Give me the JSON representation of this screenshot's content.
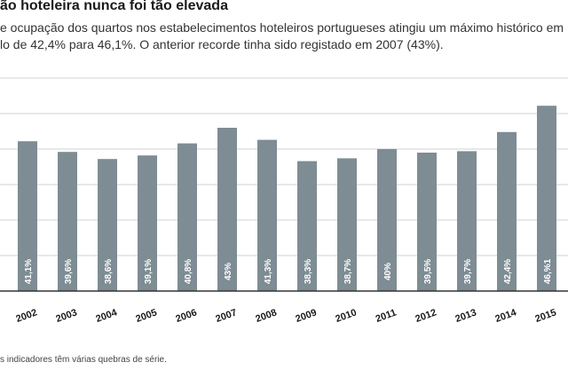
{
  "header": {
    "title": "ão hoteleira nunca foi tão elevada",
    "subtitle_line1": "e ocupação dos quartos nos estabelecimentos hoteleiros portugueses atingiu um máximo histórico em",
    "subtitle_line2": "lo de 42,4% para 46,1%. O anterior recorde tinha sido registado em 2007 (43%)."
  },
  "footnote": "s indicadores têm várias quebras de série.",
  "colors": {
    "bar": "#7e8c94",
    "grid": "#d0d0d0",
    "axis": "#333333",
    "bar_label": "#ffffff"
  },
  "chart_data": {
    "type": "bar",
    "title": "ão hoteleira nunca foi tão elevada",
    "xlabel": "",
    "ylabel": "",
    "grid": true,
    "ylim": [
      20,
      50
    ],
    "categories": [
      "2002",
      "2003",
      "2004",
      "2005",
      "2006",
      "2007",
      "2008",
      "2009",
      "2010",
      "2011",
      "2012",
      "2013",
      "2014",
      "2015"
    ],
    "values": [
      41.1,
      39.6,
      38.6,
      39.1,
      40.8,
      43,
      41.3,
      38.3,
      38.7,
      40,
      39.5,
      39.7,
      42.4,
      46.1
    ],
    "data_labels": [
      "41,1%",
      "39,6%",
      "38,6%",
      "39,1%",
      "40,8%",
      "43%",
      "41,3%",
      "38,3%",
      "38,7%",
      "40%",
      "39,5%",
      "39,7%",
      "42,4%",
      "46,%1"
    ]
  }
}
